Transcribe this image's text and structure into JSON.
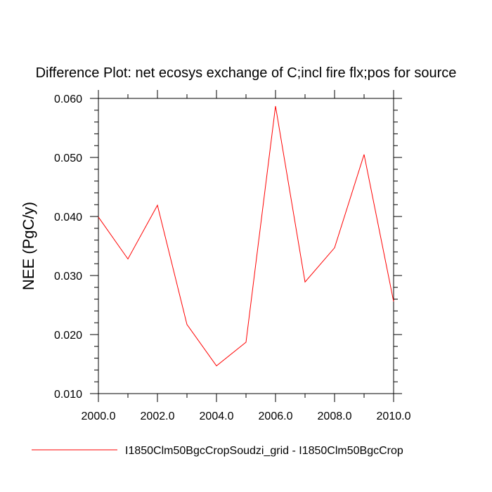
{
  "chart_data": {
    "type": "line",
    "title": "Difference Plot: net ecosys exchange of C;incl fire flx;pos for source",
    "xlabel": "",
    "ylabel": "NEE  (PgC/y)",
    "xlim": [
      2000,
      2010
    ],
    "ylim": [
      0.01,
      0.06
    ],
    "x_ticks": [
      "2000.0",
      "2002.0",
      "2004.0",
      "2006.0",
      "2008.0",
      "2010.0"
    ],
    "y_ticks": [
      "0.010",
      "0.020",
      "0.030",
      "0.040",
      "0.050",
      "0.060"
    ],
    "grid": false,
    "legend_position": "bottom",
    "series": [
      {
        "name": "I1850Clm50BgcCropSoudzi_grid - I1850Clm50BgcCrop",
        "color": "#ff0000",
        "x": [
          2000,
          2001,
          2002,
          2003,
          2004,
          2005,
          2006,
          2007,
          2008,
          2009,
          2010
        ],
        "values": [
          0.0399,
          0.0328,
          0.0419,
          0.0217,
          0.0147,
          0.0187,
          0.0587,
          0.0289,
          0.0347,
          0.0505,
          0.0256
        ]
      }
    ]
  }
}
